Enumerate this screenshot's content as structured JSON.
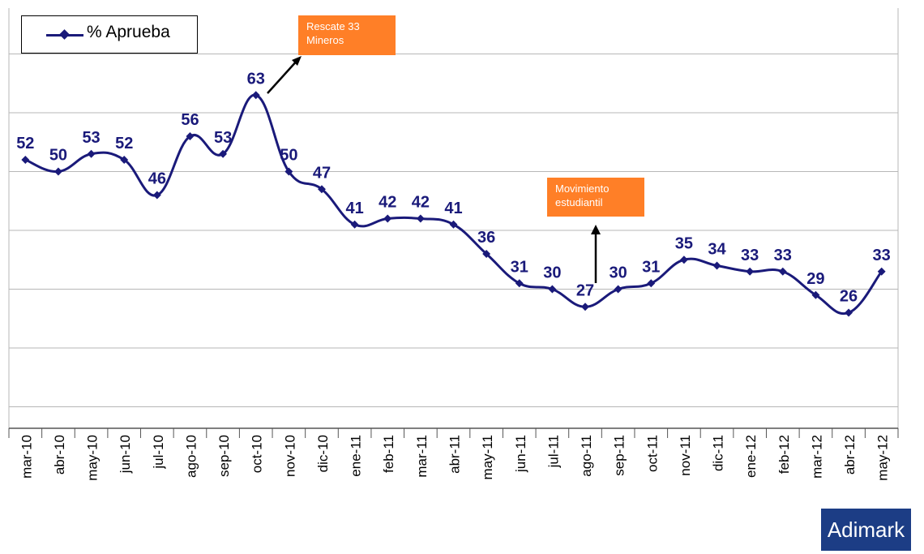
{
  "legend": {
    "label": "% Aprueba"
  },
  "annotations": [
    {
      "text": "Rescate 33 Mineros"
    },
    {
      "text": "Movimiento estudiantil"
    }
  ],
  "brand": "Adimark",
  "colors": {
    "series": "#1a1a7a",
    "annotation": "#ff7f27",
    "brand": "#1c3d85",
    "grid": "#b7b7b7"
  },
  "chart_data": {
    "type": "line",
    "title": "",
    "xlabel": "",
    "ylabel": "",
    "ylim": [
      0,
      70
    ],
    "grid": true,
    "legend_position": "top-left",
    "categories": [
      "mar-10",
      "abr-10",
      "may-10",
      "jun-10",
      "jul-10",
      "ago-10",
      "sep-10",
      "oct-10",
      "nov-10",
      "dic-10",
      "ene-11",
      "feb-11",
      "mar-11",
      "abr-11",
      "may-11",
      "jun-11",
      "jul-11",
      "ago-11",
      "sep-11",
      "oct-11",
      "nov-11",
      "dic-11",
      "ene-12",
      "feb-12",
      "mar-12",
      "abr-12",
      "may-12"
    ],
    "series": [
      {
        "name": "% Aprueba",
        "values": [
          52,
          50,
          53,
          52,
          46,
          56,
          53,
          63,
          50,
          47,
          41,
          42,
          42,
          41,
          36,
          31,
          30,
          27,
          30,
          31,
          35,
          34,
          33,
          33,
          29,
          26,
          33
        ]
      }
    ]
  }
}
